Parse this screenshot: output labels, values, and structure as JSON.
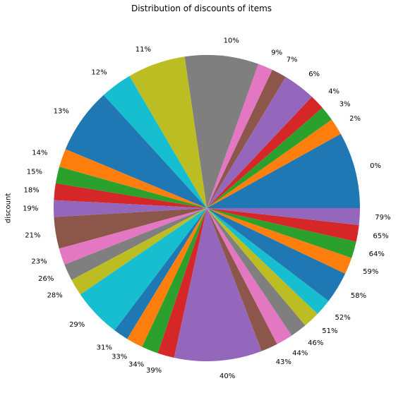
{
  "chart_data": {
    "type": "pie",
    "title": "Distribution of discounts of items",
    "ylabel": "discount",
    "start_angle_deg": 0,
    "direction": "counterclockwise",
    "categories": [
      "0%",
      "2%",
      "3%",
      "4%",
      "6%",
      "7%",
      "9%",
      "10%",
      "11%",
      "12%",
      "13%",
      "14%",
      "15%",
      "18%",
      "19%",
      "21%",
      "23%",
      "26%",
      "28%",
      "29%",
      "31%",
      "33%",
      "34%",
      "39%",
      "40%",
      "43%",
      "44%",
      "46%",
      "51%",
      "52%",
      "58%",
      "59%",
      "64%",
      "65%",
      "79%"
    ],
    "values": [
      8.7,
      1.9,
      1.7,
      1.7,
      3.7,
      1.7,
      1.7,
      8.4,
      6.6,
      3.6,
      7.5,
      2.1,
      1.9,
      1.9,
      1.9,
      3.6,
      1.9,
      1.9,
      1.9,
      5.6,
      1.7,
      1.9,
      1.9,
      1.9,
      10.0,
      1.9,
      1.9,
      1.9,
      1.9,
      1.9,
      3.6,
      1.9,
      1.9,
      1.9,
      1.9
    ],
    "colors": [
      "#1f77b4",
      "#ff7f0e",
      "#2ca02c",
      "#d62728",
      "#9467bd",
      "#8c564b",
      "#e377c2",
      "#7f7f7f",
      "#bcbd22",
      "#17becf",
      "#1f77b4",
      "#ff7f0e",
      "#2ca02c",
      "#d62728",
      "#9467bd",
      "#8c564b",
      "#e377c2",
      "#7f7f7f",
      "#bcbd22",
      "#17becf",
      "#1f77b4",
      "#ff7f0e",
      "#2ca02c",
      "#d62728",
      "#9467bd",
      "#8c564b",
      "#e377c2",
      "#7f7f7f",
      "#bcbd22",
      "#17becf",
      "#1f77b4",
      "#ff7f0e",
      "#2ca02c",
      "#d62728",
      "#9467bd"
    ]
  }
}
